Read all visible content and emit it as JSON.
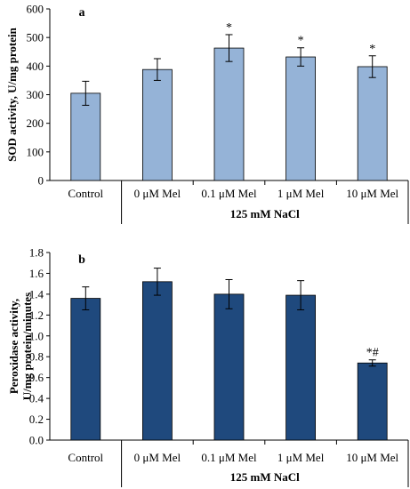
{
  "chart_data": [
    {
      "type": "bar",
      "panel_label": "a",
      "categories": [
        "Control",
        "0 μM Mel",
        "0.1 μM Mel",
        "1 μM Mel",
        "10 μM Mel"
      ],
      "values": [
        305,
        388,
        463,
        432,
        398
      ],
      "errors": [
        42,
        38,
        47,
        32,
        38
      ],
      "significance": [
        "",
        "",
        "*",
        "*",
        "*"
      ],
      "ylabel": "SOD activity, U/mg protein",
      "group_label": "125 mM NaCl",
      "ylim": [
        0,
        600
      ],
      "yticks": [
        "0",
        "100",
        "200",
        "300",
        "400",
        "500",
        "600"
      ],
      "color": "#95b3d7",
      "grid": false
    },
    {
      "type": "bar",
      "panel_label": "b",
      "categories": [
        "Control",
        "0 μM Mel",
        "0.1 μM Mel",
        "1 μM Mel",
        "10 μM Mel"
      ],
      "values": [
        1.36,
        1.52,
        1.4,
        1.39,
        0.74
      ],
      "errors": [
        0.11,
        0.13,
        0.14,
        0.14,
        0.03
      ],
      "significance": [
        "",
        "",
        "",
        "",
        "*#"
      ],
      "ylabel": "Peroxidase activity, U/mg protein/minutes",
      "ylabel_lines": [
        "Peroxidase activity,",
        "U/mg protein/minutes"
      ],
      "group_label": "125 mM NaCl",
      "ylim": [
        0,
        1.8
      ],
      "yticks": [
        "0.0",
        "0.2",
        "0.4",
        "0.6",
        "0.8",
        "1.0",
        "1.2",
        "1.4",
        "1.6",
        "1.8"
      ],
      "color": "#1f497d",
      "grid": false
    }
  ]
}
